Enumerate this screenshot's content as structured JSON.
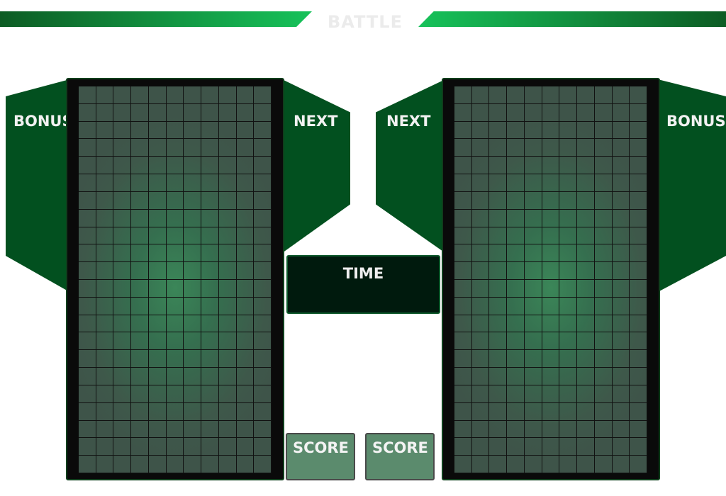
{
  "header": {
    "title": "BATTLE"
  },
  "left_player": {
    "bonus_label": "BONUS",
    "next_label": "NEXT",
    "score_label": "SCORE"
  },
  "right_player": {
    "bonus_label": "BONUS",
    "next_label": "NEXT",
    "score_label": "SCORE"
  },
  "center": {
    "time_label": "TIME"
  },
  "board": {
    "columns": 11,
    "rows": 22
  },
  "colors": {
    "panel": "#02501f",
    "board_glow": "#3b8658",
    "score_box": "#5b8b6d",
    "banner": "#17c25a"
  }
}
